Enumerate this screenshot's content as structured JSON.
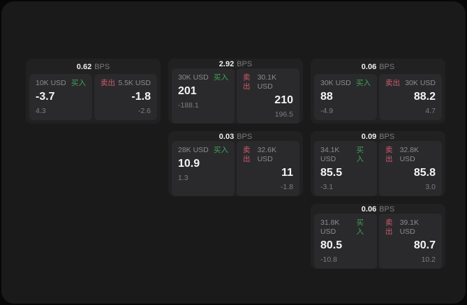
{
  "window": {
    "background": "#1a1a1b",
    "outer_background": "#070707"
  },
  "labels": {
    "bps_suffix": "BPS",
    "buy": "买入",
    "sell": "卖出"
  },
  "colors": {
    "buy_green": "#41a156",
    "sell_red": "#cf5b6d",
    "value_white": "#f4f4f5",
    "label_gray": "#8c8c8e",
    "delta_gray": "#7e7e80",
    "card_bg": "#212122",
    "panel_bg": "#2a2a2c"
  },
  "cards": [
    {
      "bps": "0.62",
      "buy": {
        "amount": "10K USD",
        "value": "-3.7",
        "delta": "4.3"
      },
      "sell": {
        "amount": "5.5K USD",
        "value": "-1.8",
        "delta": "-2.6"
      }
    },
    {
      "bps": "2.92",
      "buy": {
        "amount": "30K USD",
        "value": "201",
        "delta": "-188.1"
      },
      "sell": {
        "amount": "30.1K USD",
        "value": "210",
        "delta": "196.5"
      }
    },
    {
      "bps": "0.06",
      "buy": {
        "amount": "30K USD",
        "value": "88",
        "delta": "-4.9"
      },
      "sell": {
        "amount": "30K USD",
        "value": "88.2",
        "delta": "4.7"
      }
    },
    {
      "bps": "0.03",
      "buy": {
        "amount": "28K USD",
        "value": "10.9",
        "delta": "1.3"
      },
      "sell": {
        "amount": "32.6K USD",
        "value": "11",
        "delta": "-1.8"
      }
    },
    {
      "bps": "0.09",
      "buy": {
        "amount": "34.1K USD",
        "value": "85.5",
        "delta": "-3.1"
      },
      "sell": {
        "amount": "32.8K USD",
        "value": "85.8",
        "delta": "3.0"
      }
    },
    {
      "bps": "0.06",
      "buy": {
        "amount": "31.8K USD",
        "value": "80.5",
        "delta": "-10.8"
      },
      "sell": {
        "amount": "39.1K USD",
        "value": "80.7",
        "delta": "10.2"
      }
    }
  ]
}
